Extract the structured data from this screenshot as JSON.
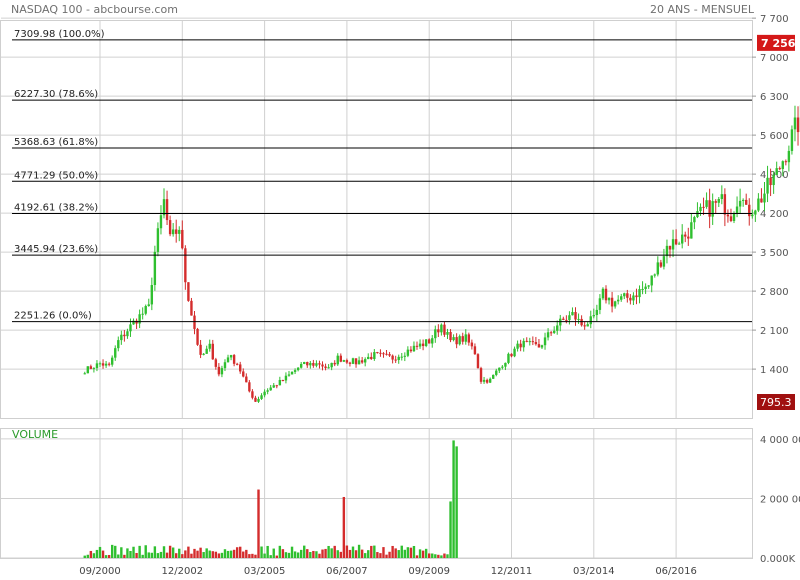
{
  "header": {
    "title": "NASDAQ 100 - abcbourse.com",
    "period": "20 ANS - MENSUEL"
  },
  "colors": {
    "up": "#2fbf2f",
    "down": "#d42c2c",
    "grid": "#d0d0d0",
    "level_line": "#000000",
    "last_badge": "#d41818",
    "low_badge": "#a01010"
  },
  "chart_data": [
    {
      "type": "candlestick",
      "title": "NASDAQ 100",
      "xlabel": "",
      "ylabel": "",
      "x_ticks": [
        "09/2000",
        "12/2002",
        "03/2005",
        "06/2007",
        "09/2009",
        "12/2011",
        "03/2014",
        "06/2016"
      ],
      "y_ticks": [
        "1 400",
        "2 100",
        "2 800",
        "3 500",
        "4 200",
        "4 900",
        "5 600",
        "6 300",
        "7 000",
        "7 700"
      ],
      "ylim": [
        700,
        7750
      ],
      "grid": true,
      "last_value": "7 256",
      "low_value": "795.3",
      "fibonacci_levels": [
        {
          "value": 7309.98,
          "label": "7309.98  (100.0%)"
        },
        {
          "value": 6227.3,
          "label": "6227.30  (78.6%)"
        },
        {
          "value": 5368.63,
          "label": "5368.63  (61.8%)"
        },
        {
          "value": 4771.29,
          "label": "4771.29  (50.0%)"
        },
        {
          "value": 4192.61,
          "label": "4192.61  (38.2%)"
        },
        {
          "value": 3445.94,
          "label": "3445.94  (23.6%)"
        },
        {
          "value": 2251.26,
          "label": "2251.26  (0.0%)"
        }
      ],
      "price_path": [
        [
          "1998-01",
          1380
        ],
        [
          "1998-06",
          1500
        ],
        [
          "1998-09",
          1450
        ],
        [
          "1998-12",
          1900
        ],
        [
          "1999-06",
          2300
        ],
        [
          "1999-10",
          2500
        ],
        [
          "1999-12",
          3500
        ],
        [
          "2000-03",
          4400
        ],
        [
          "2000-05",
          3700
        ],
        [
          "2000-08",
          3950
        ],
        [
          "2000-10",
          3000
        ],
        [
          "2000-12",
          2400
        ],
        [
          "2001-03",
          1600
        ],
        [
          "2001-06",
          1800
        ],
        [
          "2001-09",
          1300
        ],
        [
          "2001-12",
          1650
        ],
        [
          "2002-03",
          1500
        ],
        [
          "2002-07",
          1000
        ],
        [
          "2002-09",
          820
        ],
        [
          "2002-12",
          1000
        ],
        [
          "2003-06",
          1200
        ],
        [
          "2003-12",
          1470
        ],
        [
          "2004-06",
          1500
        ],
        [
          "2004-09",
          1400
        ],
        [
          "2004-12",
          1600
        ],
        [
          "2005-06",
          1520
        ],
        [
          "2005-12",
          1650
        ],
        [
          "2006-06",
          1600
        ],
        [
          "2006-12",
          1760
        ],
        [
          "2007-06",
          1900
        ],
        [
          "2007-10",
          2200
        ],
        [
          "2008-01",
          1900
        ],
        [
          "2008-06",
          1950
        ],
        [
          "2008-09",
          1700
        ],
        [
          "2008-11",
          1200
        ],
        [
          "2009-02",
          1200
        ],
        [
          "2009-06",
          1500
        ],
        [
          "2009-12",
          1860
        ],
        [
          "2010-06",
          1800
        ],
        [
          "2010-12",
          2200
        ],
        [
          "2011-05",
          2380
        ],
        [
          "2011-08",
          2200
        ],
        [
          "2011-12",
          2280
        ],
        [
          "2012-03",
          2750
        ],
        [
          "2012-06",
          2600
        ],
        [
          "2012-12",
          2700
        ],
        [
          "2013-06",
          2900
        ],
        [
          "2013-12",
          3600
        ],
        [
          "2014-06",
          3800
        ],
        [
          "2014-12",
          4250
        ],
        [
          "2015-06",
          4400
        ],
        [
          "2015-09",
          4200
        ],
        [
          "2015-12",
          4600
        ],
        [
          "2016-02",
          4200
        ],
        [
          "2016-06",
          4400
        ],
        [
          "2016-12",
          4900
        ],
        [
          "2017-06",
          5700
        ],
        [
          "2017-12",
          6400
        ],
        [
          "2018-03",
          6600
        ],
        [
          "2018-06",
          7000
        ],
        [
          "2018-08",
          7400
        ]
      ]
    },
    {
      "type": "bar",
      "title": "VOLUME",
      "y_ticks": [
        "0.000K",
        "2 000 000",
        "4 000 000"
      ],
      "ylim": [
        0,
        4300000
      ],
      "base_volume": [
        80000,
        450000
      ],
      "spikes": [
        {
          "date": "2002-10",
          "value": 2300000,
          "color": "down"
        },
        {
          "date": "2005-02",
          "value": 2050000,
          "color": "down"
        },
        {
          "date": "2008-01",
          "value": 1900000,
          "color": "up"
        },
        {
          "date": "2008-02",
          "value": 3950000,
          "color": "up"
        },
        {
          "date": "2008-03",
          "value": 3750000,
          "color": "up"
        }
      ],
      "volume_end": "2008-03"
    }
  ]
}
